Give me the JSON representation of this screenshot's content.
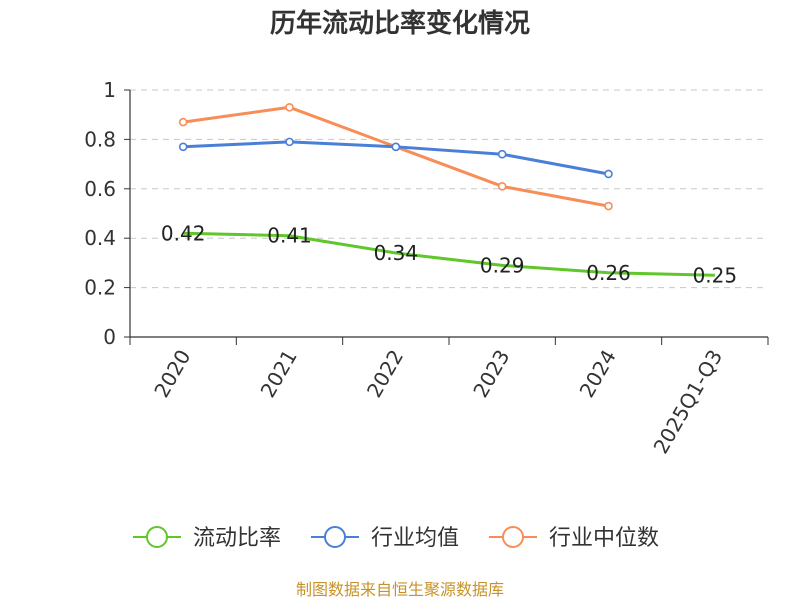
{
  "chart_data": {
    "type": "line",
    "title": "历年流动比率变化情况",
    "categories": [
      "2020",
      "2021",
      "2022",
      "2023",
      "2024",
      "2025Q1-Q3"
    ],
    "ylim": [
      0,
      1
    ],
    "yticks": [
      "0",
      "0.2",
      "0.4",
      "0.6",
      "0.8",
      "1"
    ],
    "ytick_values": [
      0,
      0.2,
      0.4,
      0.6,
      0.8,
      1
    ],
    "grid": true,
    "legend_position": "bottom",
    "series": [
      {
        "name": "流动比率",
        "color": "#5fc72a",
        "values": [
          0.42,
          0.41,
          0.34,
          0.29,
          0.26,
          0.25
        ],
        "labels": [
          "0.42",
          "0.41",
          "0.34",
          "0.29",
          "0.26",
          "0.25"
        ],
        "show_labels": true
      },
      {
        "name": "行业均值",
        "color": "#4a7fd8",
        "values": [
          0.77,
          0.79,
          0.77,
          0.74,
          0.66,
          null
        ],
        "show_labels": false
      },
      {
        "name": "行业中位数",
        "color": "#f78d57",
        "values": [
          0.87,
          0.93,
          0.77,
          0.61,
          0.53,
          null
        ],
        "show_labels": false
      }
    ]
  },
  "source_text": "制图数据来自恒生聚源数据库",
  "colors": {
    "source": "#c8922a",
    "grid": "#c8c8c8",
    "axis": "#333333"
  }
}
